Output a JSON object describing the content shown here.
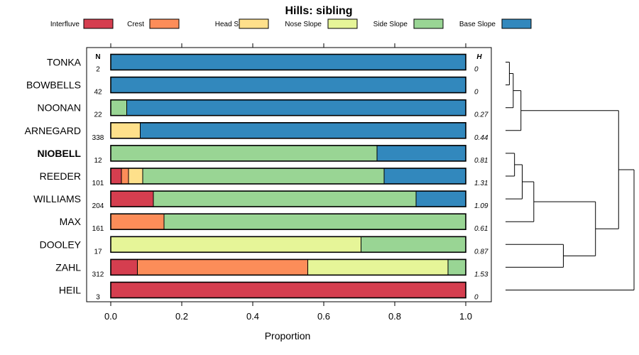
{
  "chart_data": {
    "type": "bar",
    "orientation": "horizontal",
    "stacked": true,
    "title": "Hills: sibling",
    "xlabel": "Proportion",
    "xlim": [
      0,
      1
    ],
    "x_ticks": [
      "0.0",
      "0.2",
      "0.4",
      "0.6",
      "0.8",
      "1.0"
    ],
    "n_header": "N",
    "h_header": "H",
    "legend": [
      {
        "name": "Interfluve",
        "color": "#D53E4F"
      },
      {
        "name": "Crest",
        "color": "#FC8D59"
      },
      {
        "name": "Head Slope",
        "color": "#FEE08B"
      },
      {
        "name": "Nose Slope",
        "color": "#E6F598"
      },
      {
        "name": "Side Slope",
        "color": "#99D594"
      },
      {
        "name": "Base Slope",
        "color": "#3288BD"
      }
    ],
    "categories": [
      "TONKA",
      "BOWBELLS",
      "NOONAN",
      "ARNEGARD",
      "NIOBELL",
      "REEDER",
      "WILLIAMS",
      "MAX",
      "DOOLEY",
      "ZAHL",
      "HEIL"
    ],
    "highlight": "NIOBELL",
    "n": [
      "2",
      "42",
      "22",
      "338",
      "12",
      "101",
      "204",
      "161",
      "17",
      "312",
      "3"
    ],
    "h": [
      "0",
      "0",
      "0.27",
      "0.44",
      "0.81",
      "1.31",
      "1.09",
      "0.61",
      "0.87",
      "1.53",
      "0"
    ],
    "series": [
      {
        "name": "Interfluve",
        "values": [
          0,
          0,
          0,
          0,
          0,
          0.03,
          0.12,
          0,
          0,
          0.075,
          1.0
        ]
      },
      {
        "name": "Crest",
        "values": [
          0,
          0,
          0,
          0,
          0,
          0.02,
          0,
          0.15,
          0,
          0.48,
          0
        ]
      },
      {
        "name": "Head Slope",
        "values": [
          0,
          0,
          0,
          0.083,
          0,
          0.04,
          0,
          0,
          0,
          0,
          0
        ]
      },
      {
        "name": "Nose Slope",
        "values": [
          0,
          0,
          0,
          0,
          0,
          0,
          0,
          0,
          0.705,
          0.395,
          0
        ]
      },
      {
        "name": "Side Slope",
        "values": [
          0,
          0,
          0.045,
          0,
          0.75,
          0.68,
          0.74,
          0.85,
          0.295,
          0.05,
          0
        ]
      },
      {
        "name": "Base Slope",
        "values": [
          1.0,
          1.0,
          0.955,
          0.917,
          0.25,
          0.23,
          0.14,
          0,
          0,
          0,
          0
        ]
      }
    ],
    "dendrogram": {
      "type": "hierarchical-clustering",
      "merges": [
        {
          "members": [
            "TONKA",
            "BOWBELLS"
          ],
          "height": 0.03
        },
        {
          "members": [
            "TONKA",
            "BOWBELLS",
            "NOONAN"
          ],
          "height": 0.06
        },
        {
          "members": [
            "TONKA",
            "BOWBELLS",
            "NOONAN",
            "ARNEGARD"
          ],
          "height": 0.12
        },
        {
          "members": [
            "NIOBELL",
            "REEDER"
          ],
          "height": 0.07
        },
        {
          "members": [
            "NIOBELL",
            "REEDER",
            "WILLIAMS"
          ],
          "height": 0.13
        },
        {
          "members": [
            "NIOBELL",
            "REEDER",
            "WILLIAMS",
            "MAX"
          ],
          "height": 0.22
        },
        {
          "members": [
            "DOOLEY",
            "ZAHL"
          ],
          "height": 0.45
        },
        {
          "members": [
            "NIOBELL",
            "REEDER",
            "WILLIAMS",
            "MAX",
            "DOOLEY",
            "ZAHL"
          ],
          "height": 0.7
        },
        {
          "members": [
            "TONKA",
            "BOWBELLS",
            "NOONAN",
            "ARNEGARD",
            "NIOBELL",
            "REEDER",
            "WILLIAMS",
            "MAX",
            "DOOLEY",
            "ZAHL"
          ],
          "height": 0.88
        },
        {
          "members": [
            "TONKA",
            "BOWBELLS",
            "NOONAN",
            "ARNEGARD",
            "NIOBELL",
            "REEDER",
            "WILLIAMS",
            "MAX",
            "DOOLEY",
            "ZAHL",
            "HEIL"
          ],
          "height": 1.0
        }
      ]
    }
  }
}
